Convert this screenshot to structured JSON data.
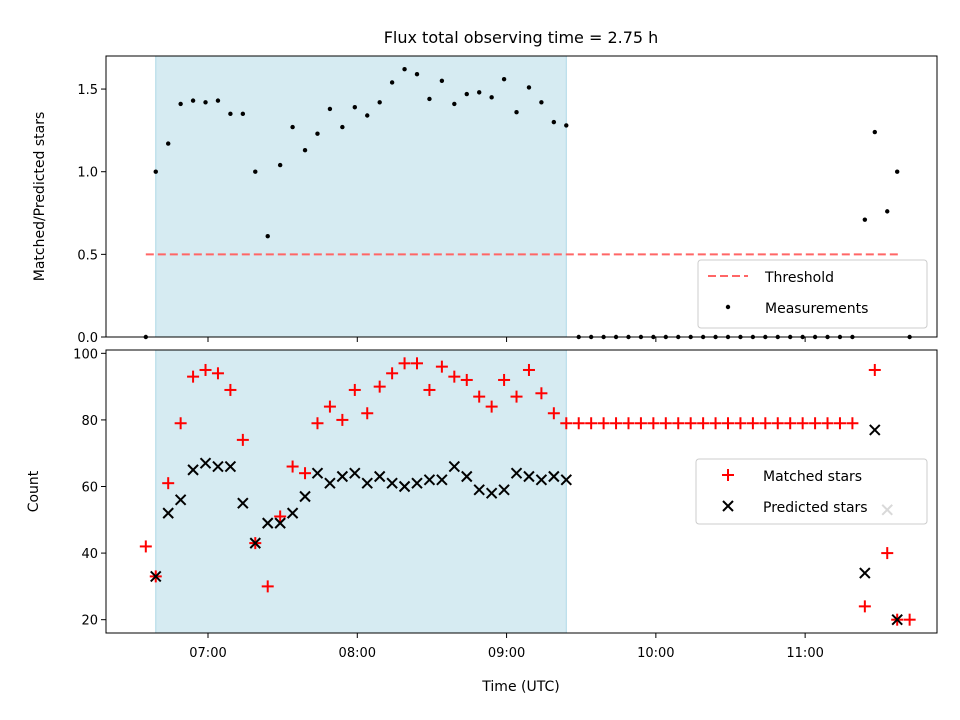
{
  "chart_data": [
    {
      "type": "scatter",
      "title": "Flux total observing time = 2.75 h",
      "xlabel": "",
      "ylabel": "Matched/Predicted stars",
      "ylim": [
        0,
        1.7
      ],
      "yticks": [
        "0.0",
        "0.5",
        "1.0",
        "1.5"
      ],
      "xlim": [
        "06:19",
        "11:53"
      ],
      "xticks": [
        "07:00",
        "08:00",
        "09:00",
        "10:00",
        "11:00"
      ],
      "shaded_region": {
        "start": "06:39",
        "end": "09:24",
        "color": "#add8e6"
      },
      "threshold": {
        "name": "Threshold",
        "value": 0.5,
        "from": "06:35",
        "to": "11:38",
        "color": "#ff6666"
      },
      "legend": {
        "placement": "lower right",
        "entries": [
          "Threshold",
          "Measurements"
        ]
      },
      "series": [
        {
          "name": "Measurements",
          "color": "#000000",
          "points": [
            [
              "06:35",
              0.0
            ],
            [
              "06:39",
              1.0
            ],
            [
              "06:44",
              1.17
            ],
            [
              "06:49",
              1.41
            ],
            [
              "06:54",
              1.43
            ],
            [
              "06:59",
              1.42
            ],
            [
              "07:04",
              1.43
            ],
            [
              "07:09",
              1.35
            ],
            [
              "07:14",
              1.35
            ],
            [
              "07:19",
              1.0
            ],
            [
              "07:24",
              0.61
            ],
            [
              "07:29",
              1.04
            ],
            [
              "07:34",
              1.27
            ],
            [
              "07:39",
              1.13
            ],
            [
              "07:44",
              1.23
            ],
            [
              "07:49",
              1.38
            ],
            [
              "07:54",
              1.27
            ],
            [
              "07:59",
              1.39
            ],
            [
              "08:04",
              1.34
            ],
            [
              "08:09",
              1.42
            ],
            [
              "08:14",
              1.54
            ],
            [
              "08:19",
              1.62
            ],
            [
              "08:24",
              1.59
            ],
            [
              "08:29",
              1.44
            ],
            [
              "08:34",
              1.55
            ],
            [
              "08:39",
              1.41
            ],
            [
              "08:44",
              1.47
            ],
            [
              "08:49",
              1.48
            ],
            [
              "08:54",
              1.45
            ],
            [
              "08:59",
              1.56
            ],
            [
              "09:04",
              1.36
            ],
            [
              "09:09",
              1.51
            ],
            [
              "09:14",
              1.42
            ],
            [
              "09:19",
              1.3
            ],
            [
              "09:24",
              1.28
            ],
            [
              "09:29",
              0.0
            ],
            [
              "09:34",
              0.0
            ],
            [
              "09:39",
              0.0
            ],
            [
              "09:44",
              0.0
            ],
            [
              "09:49",
              0.0
            ],
            [
              "09:54",
              0.0
            ],
            [
              "09:59",
              0.0
            ],
            [
              "10:04",
              0.0
            ],
            [
              "10:09",
              0.0
            ],
            [
              "10:14",
              0.0
            ],
            [
              "10:19",
              0.0
            ],
            [
              "10:24",
              0.0
            ],
            [
              "10:29",
              0.0
            ],
            [
              "10:34",
              0.0
            ],
            [
              "10:39",
              0.0
            ],
            [
              "10:44",
              0.0
            ],
            [
              "10:49",
              0.0
            ],
            [
              "10:54",
              0.0
            ],
            [
              "10:59",
              0.0
            ],
            [
              "11:04",
              0.0
            ],
            [
              "11:09",
              0.0
            ],
            [
              "11:14",
              0.0
            ],
            [
              "11:19",
              0.0
            ],
            [
              "11:24",
              0.71
            ],
            [
              "11:28",
              1.24
            ],
            [
              "11:33",
              0.76
            ],
            [
              "11:37",
              1.0
            ],
            [
              "11:42",
              0.0
            ]
          ]
        }
      ]
    },
    {
      "type": "scatter",
      "title": "",
      "xlabel": "Time (UTC)",
      "ylabel": "Count",
      "ylim": [
        16,
        101
      ],
      "yticks": [
        "20",
        "40",
        "60",
        "80",
        "100"
      ],
      "xlim": [
        "06:19",
        "11:53"
      ],
      "xticks": [
        "07:00",
        "08:00",
        "09:00",
        "10:00",
        "11:00"
      ],
      "shaded_region": {
        "start": "06:39",
        "end": "09:24",
        "color": "#add8e6"
      },
      "legend": {
        "placement": "center right",
        "entries": [
          "Matched stars",
          "Predicted stars"
        ]
      },
      "series": [
        {
          "name": "Matched stars",
          "marker": "plus",
          "color": "#ff0000",
          "points": [
            [
              "06:35",
              42
            ],
            [
              "06:39",
              33
            ],
            [
              "06:44",
              61
            ],
            [
              "06:49",
              79
            ],
            [
              "06:54",
              93
            ],
            [
              "06:59",
              95
            ],
            [
              "07:04",
              94
            ],
            [
              "07:09",
              89
            ],
            [
              "07:14",
              74
            ],
            [
              "07:19",
              43
            ],
            [
              "07:24",
              30
            ],
            [
              "07:29",
              51
            ],
            [
              "07:34",
              66
            ],
            [
              "07:39",
              64
            ],
            [
              "07:44",
              79
            ],
            [
              "07:49",
              84
            ],
            [
              "07:54",
              80
            ],
            [
              "07:59",
              89
            ],
            [
              "08:04",
              82
            ],
            [
              "08:09",
              90
            ],
            [
              "08:14",
              94
            ],
            [
              "08:19",
              97
            ],
            [
              "08:24",
              97
            ],
            [
              "08:29",
              89
            ],
            [
              "08:34",
              96
            ],
            [
              "08:39",
              93
            ],
            [
              "08:44",
              92
            ],
            [
              "08:49",
              87
            ],
            [
              "08:54",
              84
            ],
            [
              "08:59",
              92
            ],
            [
              "09:04",
              87
            ],
            [
              "09:09",
              95
            ],
            [
              "09:14",
              88
            ],
            [
              "09:19",
              82
            ],
            [
              "09:24",
              79
            ],
            [
              "09:29",
              79
            ],
            [
              "09:34",
              79
            ],
            [
              "09:39",
              79
            ],
            [
              "09:44",
              79
            ],
            [
              "09:49",
              79
            ],
            [
              "09:54",
              79
            ],
            [
              "09:59",
              79
            ],
            [
              "10:04",
              79
            ],
            [
              "10:09",
              79
            ],
            [
              "10:14",
              79
            ],
            [
              "10:19",
              79
            ],
            [
              "10:24",
              79
            ],
            [
              "10:29",
              79
            ],
            [
              "10:34",
              79
            ],
            [
              "10:39",
              79
            ],
            [
              "10:44",
              79
            ],
            [
              "10:49",
              79
            ],
            [
              "10:54",
              79
            ],
            [
              "10:59",
              79
            ],
            [
              "11:04",
              79
            ],
            [
              "11:09",
              79
            ],
            [
              "11:14",
              79
            ],
            [
              "11:19",
              79
            ],
            [
              "11:24",
              24
            ],
            [
              "11:28",
              95
            ],
            [
              "11:33",
              40
            ],
            [
              "11:37",
              20
            ],
            [
              "11:42",
              20
            ]
          ]
        },
        {
          "name": "Predicted stars",
          "marker": "x",
          "color": "#000000",
          "points": [
            [
              "06:39",
              33
            ],
            [
              "06:44",
              52
            ],
            [
              "06:49",
              56
            ],
            [
              "06:54",
              65
            ],
            [
              "06:59",
              67
            ],
            [
              "07:04",
              66
            ],
            [
              "07:09",
              66
            ],
            [
              "07:14",
              55
            ],
            [
              "07:19",
              43
            ],
            [
              "07:24",
              49
            ],
            [
              "07:29",
              49
            ],
            [
              "07:34",
              52
            ],
            [
              "07:39",
              57
            ],
            [
              "07:44",
              64
            ],
            [
              "07:49",
              61
            ],
            [
              "07:54",
              63
            ],
            [
              "07:59",
              64
            ],
            [
              "08:04",
              61
            ],
            [
              "08:09",
              63
            ],
            [
              "08:14",
              61
            ],
            [
              "08:19",
              60
            ],
            [
              "08:24",
              61
            ],
            [
              "08:29",
              62
            ],
            [
              "08:34",
              62
            ],
            [
              "08:39",
              66
            ],
            [
              "08:44",
              63
            ],
            [
              "08:49",
              59
            ],
            [
              "08:54",
              58
            ],
            [
              "08:59",
              59
            ],
            [
              "09:04",
              64
            ],
            [
              "09:09",
              63
            ],
            [
              "09:14",
              62
            ],
            [
              "09:19",
              63
            ],
            [
              "09:24",
              62
            ],
            [
              "11:24",
              34
            ],
            [
              "11:28",
              77
            ],
            [
              "11:33",
              53
            ],
            [
              "11:37",
              20
            ]
          ]
        }
      ]
    }
  ]
}
